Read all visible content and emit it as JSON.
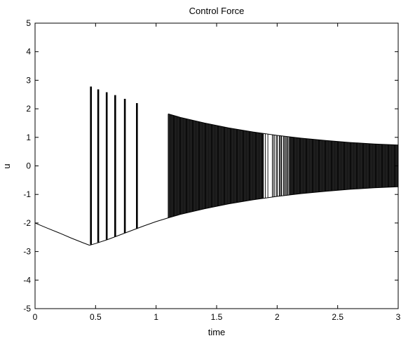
{
  "chart_data": {
    "type": "line",
    "title": "Control Force",
    "xlabel": "time",
    "ylabel": "u",
    "xlim": [
      0,
      3
    ],
    "ylim": [
      -5,
      5
    ],
    "xticks": [
      0,
      0.5,
      1,
      1.5,
      2,
      2.5,
      3
    ],
    "xtick_labels": [
      "0",
      "0.5",
      "1",
      "1.5",
      "2",
      "2.5",
      "3"
    ],
    "yticks": [
      -5,
      -4,
      -3,
      -2,
      -1,
      0,
      1,
      2,
      3,
      4,
      5
    ],
    "ytick_labels": [
      "-5",
      "-4",
      "-3",
      "-2",
      "-1",
      "0",
      "1",
      "2",
      "3",
      "4",
      "5"
    ],
    "grid": false,
    "line_color": "#000000",
    "series": [
      {
        "name": "",
        "smooth_segments": [
          {
            "x": [
              0,
              0.1,
              0.2,
              0.3,
              0.4,
              0.45
            ],
            "y": [
              -2.0,
              -2.18,
              -2.35,
              -2.53,
              -2.7,
              -2.78
            ]
          }
        ],
        "lower_envelope": {
          "x": [
            0.45,
            0.5,
            0.6,
            0.7,
            0.8,
            0.9,
            1.0,
            1.1,
            1.2,
            1.4,
            1.6,
            1.8,
            2.0,
            2.2,
            2.4,
            2.6,
            2.8,
            3.0
          ],
          "y": [
            -2.78,
            -2.72,
            -2.58,
            -2.42,
            -2.26,
            -2.1,
            -1.95,
            -1.82,
            -1.7,
            -1.5,
            -1.33,
            -1.19,
            -1.07,
            -0.97,
            -0.89,
            -0.82,
            -0.77,
            -0.73
          ]
        },
        "upper_envelope": {
          "x": [
            1.1,
            1.2,
            1.4,
            1.6,
            1.8,
            2.0,
            2.2,
            2.4,
            2.6,
            2.8,
            3.0
          ],
          "y": [
            1.82,
            1.7,
            1.5,
            1.33,
            1.19,
            1.07,
            0.97,
            0.89,
            0.82,
            0.77,
            0.73
          ]
        },
        "spikes": [
          {
            "x": 0.46,
            "top": 2.78,
            "bottom": -2.75
          },
          {
            "x": 0.52,
            "top": 2.68,
            "bottom": -2.68
          },
          {
            "x": 0.59,
            "top": 2.58,
            "bottom": -2.58
          },
          {
            "x": 0.66,
            "top": 2.48,
            "bottom": -2.48
          },
          {
            "x": 0.74,
            "top": 2.35,
            "bottom": -2.35
          },
          {
            "x": 0.84,
            "top": 2.2,
            "bottom": -2.2
          }
        ],
        "chatter_region": {
          "x_start": 1.1,
          "x_end": 3.0,
          "gap_start": 1.89,
          "gap_end": 1.95
        }
      }
    ]
  }
}
